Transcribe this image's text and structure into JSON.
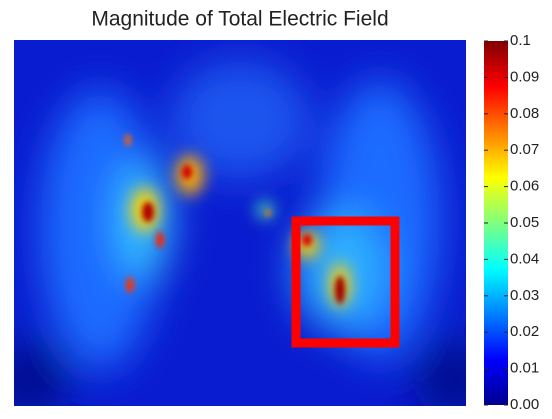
{
  "chart_data": {
    "type": "heatmap",
    "title": "Magnitude of Total Electric Field",
    "colormap": "jet",
    "clim": [
      0,
      0.1
    ],
    "cticks": [
      0.1,
      0.09,
      0.08,
      0.07,
      0.06,
      0.05,
      0.04,
      0.03,
      0.02,
      0.01,
      {
        "value": 0,
        "label": "0.00"
      }
    ]
  }
}
